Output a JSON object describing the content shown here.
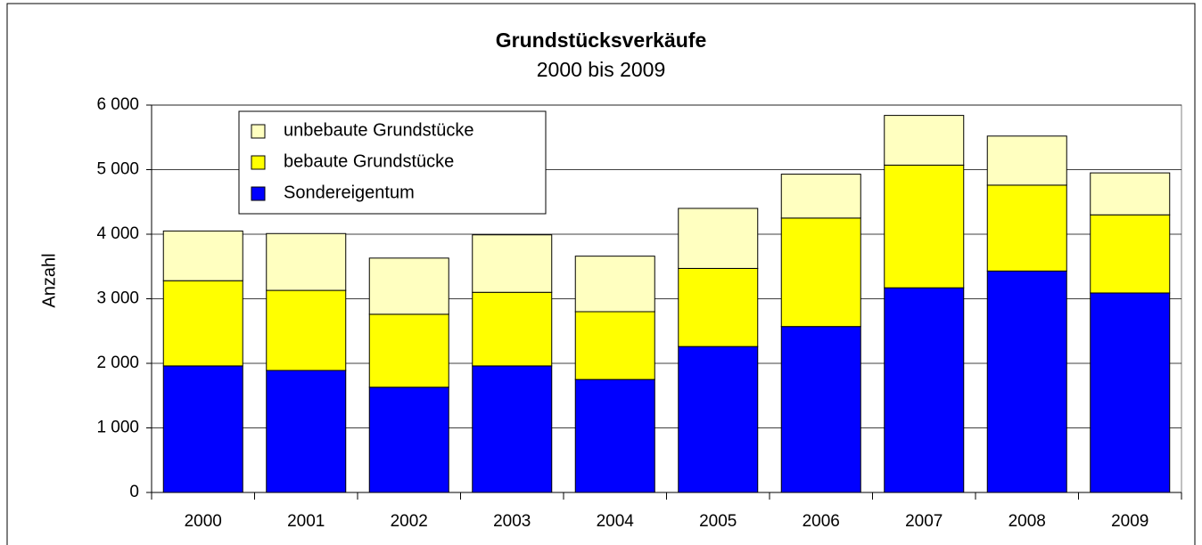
{
  "chart_data": {
    "type": "stacked_bar",
    "title": "Grundstücksverkäufe",
    "subtitle": "2000 bis 2009",
    "y_label": "Anzahl",
    "categories": [
      "2000",
      "2001",
      "2002",
      "2003",
      "2004",
      "2005",
      "2006",
      "2007",
      "2008",
      "2009"
    ],
    "series": [
      {
        "name": "Sondereigentum",
        "color": "#0000ff",
        "values": [
          1960,
          1890,
          1630,
          1960,
          1750,
          2260,
          2570,
          3170,
          3430,
          3090
        ]
      },
      {
        "name": "bebaute Grundstücke",
        "color": "#ffff00",
        "values": [
          1320,
          1240,
          1130,
          1140,
          1050,
          1210,
          1680,
          1900,
          1330,
          1210
        ]
      },
      {
        "name": "unbebaute Grundstücke",
        "color": "#ffffc0",
        "values": [
          770,
          880,
          870,
          890,
          860,
          930,
          680,
          770,
          760,
          650
        ]
      }
    ],
    "ylim": [
      0,
      6000
    ],
    "yticks": [
      0,
      {
        "value": 1000,
        "label": "1 000"
      },
      {
        "value": 2000,
        "label": "2 000"
      },
      {
        "value": 3000,
        "label": "3 000"
      },
      {
        "value": 4000,
        "label": "4 000"
      },
      {
        "value": 5000,
        "label": "5 000"
      },
      {
        "value": 6000,
        "label": "6 000"
      }
    ],
    "grid": true,
    "legend": "top-left"
  }
}
